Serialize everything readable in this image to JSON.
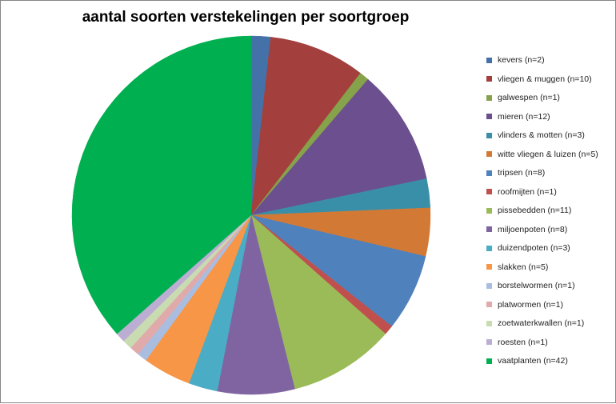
{
  "chart_data": {
    "type": "pie",
    "title": "aantal soorten verstekelingen per soortgroep",
    "xlabel": "",
    "ylabel": "",
    "legend_position": "right",
    "total": 115,
    "categories": [
      "kevers (n=2)",
      "vliegen & muggen (n=10)",
      "galwespen (n=1)",
      "mieren (n=12)",
      "vlinders & motten (n=3)",
      "witte vliegen & luizen (n=5)",
      "tripsen (n=8)",
      "roofmijten (n=1)",
      "pissebedden (n=11)",
      "miljoenpoten (n=8)",
      "duizendpoten (n=3)",
      "slakken (n=5)",
      "borstelwormen (n=1)",
      "platwormen (n=1)",
      "zoetwaterkwallen (n=1)",
      "roesten (n=1)",
      "vaatplanten (n=42)"
    ],
    "values": [
      2,
      10,
      1,
      12,
      3,
      5,
      8,
      1,
      11,
      8,
      3,
      5,
      1,
      1,
      1,
      1,
      42
    ],
    "colors": [
      "#4472a8",
      "#a3403d",
      "#86a24a",
      "#6c4f8e",
      "#3a8fa8",
      "#d27a35",
      "#4f81bd",
      "#c0504d",
      "#9bbb59",
      "#8064a2",
      "#4bacc6",
      "#f79646",
      "#a9bde0",
      "#e0aaaa",
      "#c9dbb0",
      "#bcaed3",
      "#00b050"
    ]
  }
}
